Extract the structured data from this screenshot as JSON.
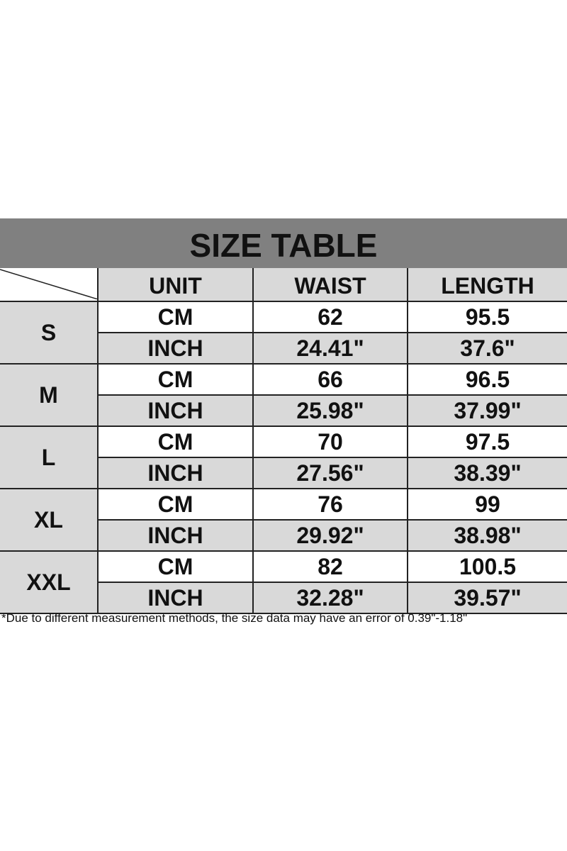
{
  "title": "SIZE TABLE",
  "headers": [
    "UNIT",
    "WAIST",
    "LENGTH"
  ],
  "rows": [
    {
      "size": "S",
      "cm": {
        "unit": "CM",
        "waist": "62",
        "length": "95.5"
      },
      "inch": {
        "unit": "INCH",
        "waist": "24.41\"",
        "length": "37.6\""
      }
    },
    {
      "size": "M",
      "cm": {
        "unit": "CM",
        "waist": "66",
        "length": "96.5"
      },
      "inch": {
        "unit": "INCH",
        "waist": "25.98\"",
        "length": "37.99\""
      }
    },
    {
      "size": "L",
      "cm": {
        "unit": "CM",
        "waist": "70",
        "length": "97.5"
      },
      "inch": {
        "unit": "INCH",
        "waist": "27.56\"",
        "length": "38.39\""
      }
    },
    {
      "size": "XL",
      "cm": {
        "unit": "CM",
        "waist": "76",
        "length": "99"
      },
      "inch": {
        "unit": "INCH",
        "waist": "29.92\"",
        "length": "38.98\""
      }
    },
    {
      "size": "XXL",
      "cm": {
        "unit": "CM",
        "waist": "82",
        "length": "100.5"
      },
      "inch": {
        "unit": "INCH",
        "waist": "32.28\"",
        "length": "39.57\""
      }
    }
  ],
  "note": "*Due to different measurement methods, the size data may have an error of 0.39\"-1.18\"",
  "colors": {
    "title_bar": "#808080",
    "shaded_cell": "#d9d9d9"
  }
}
